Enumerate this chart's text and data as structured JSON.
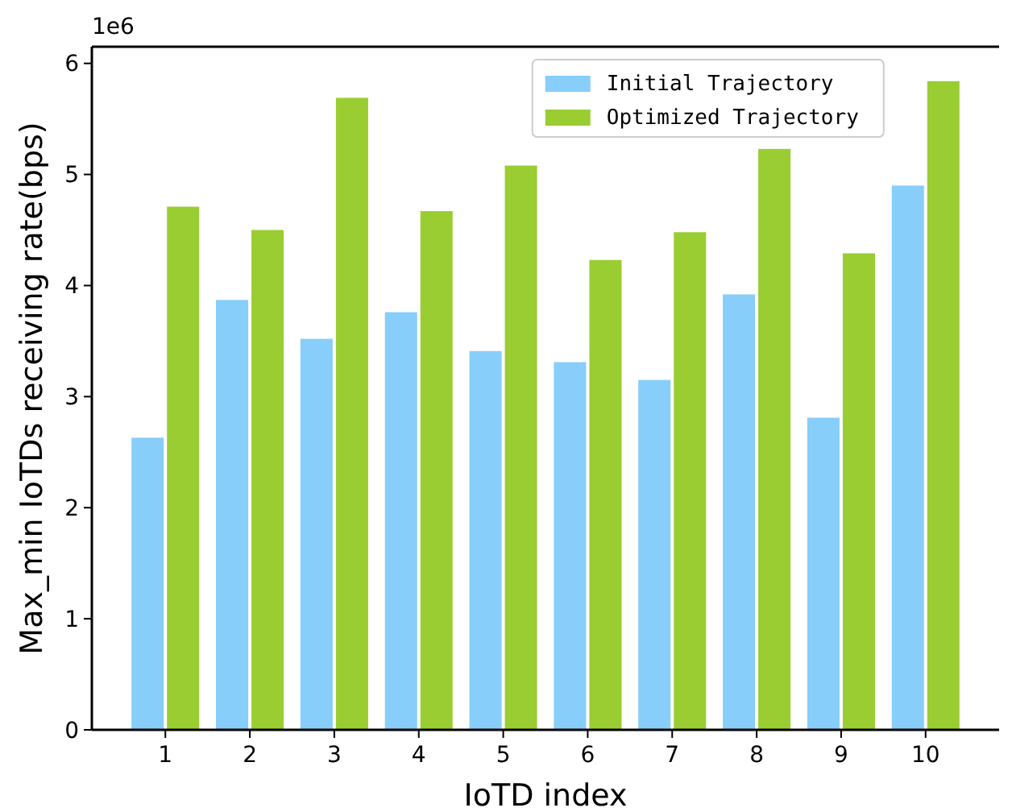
{
  "chart_data": {
    "type": "bar",
    "xlabel": "IoTD index",
    "ylabel": "Max_min IoTDs receiving rate(bps)",
    "annotations": [
      "1e6"
    ],
    "categories": [
      "1",
      "2",
      "3",
      "4",
      "5",
      "6",
      "7",
      "8",
      "9",
      "10"
    ],
    "series": [
      {
        "name": "Initial Trajectory",
        "color": "#87cefa",
        "values": [
          2.63,
          3.87,
          3.52,
          3.76,
          3.41,
          3.31,
          3.15,
          3.92,
          2.81,
          4.9
        ]
      },
      {
        "name": "Optimized Trajectory",
        "color": "#9acd32",
        "values": [
          4.71,
          4.5,
          5.69,
          4.67,
          5.08,
          4.23,
          4.48,
          5.23,
          4.29,
          5.84
        ]
      }
    ],
    "ylim": [
      0,
      6.15
    ],
    "yticks": [
      0,
      1,
      2,
      3,
      4,
      5,
      6
    ],
    "grid": false,
    "legend": "top right"
  }
}
